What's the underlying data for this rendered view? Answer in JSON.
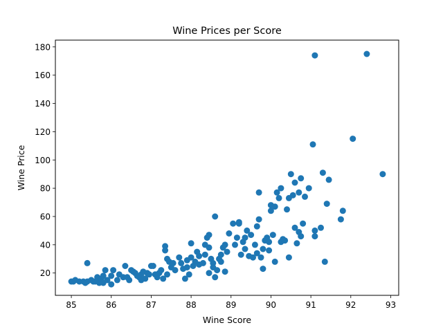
{
  "chart_data": {
    "type": "scatter",
    "title": "Wine Prices per Score",
    "xlabel": "Wine Score",
    "ylabel": "Wine Price",
    "xlim": [
      84.6,
      93.2
    ],
    "ylim": [
      4.2,
      184.8
    ],
    "xticks": [
      "85",
      "86",
      "87",
      "88",
      "89",
      "90",
      "91",
      "92",
      "93"
    ],
    "yticks": [
      "20",
      "40",
      "60",
      "80",
      "100",
      "120",
      "140",
      "160",
      "180"
    ],
    "grid": false,
    "marker_color": "#1f77b4",
    "points": [
      [
        85.0,
        14
      ],
      [
        85.05,
        14
      ],
      [
        85.1,
        15
      ],
      [
        85.2,
        14
      ],
      [
        85.3,
        14
      ],
      [
        85.35,
        13
      ],
      [
        85.4,
        14
      ],
      [
        85.4,
        27
      ],
      [
        85.5,
        15
      ],
      [
        85.55,
        14
      ],
      [
        85.6,
        14
      ],
      [
        85.65,
        17
      ],
      [
        85.7,
        13
      ],
      [
        85.75,
        16
      ],
      [
        85.8,
        13
      ],
      [
        85.8,
        18
      ],
      [
        85.85,
        22
      ],
      [
        85.9,
        15
      ],
      [
        86.0,
        12
      ],
      [
        86.0,
        18
      ],
      [
        86.05,
        22
      ],
      [
        86.15,
        15
      ],
      [
        86.2,
        19
      ],
      [
        86.3,
        17
      ],
      [
        86.35,
        25
      ],
      [
        86.4,
        17
      ],
      [
        86.45,
        15
      ],
      [
        86.5,
        22
      ],
      [
        86.55,
        21
      ],
      [
        86.6,
        20
      ],
      [
        86.65,
        18
      ],
      [
        86.7,
        17
      ],
      [
        86.75,
        15
      ],
      [
        86.75,
        19
      ],
      [
        86.8,
        21
      ],
      [
        86.85,
        16
      ],
      [
        86.9,
        20
      ],
      [
        86.95,
        19
      ],
      [
        87.0,
        25
      ],
      [
        87.05,
        25
      ],
      [
        87.1,
        19
      ],
      [
        87.15,
        17
      ],
      [
        87.2,
        20
      ],
      [
        87.25,
        22
      ],
      [
        87.3,
        16
      ],
      [
        87.35,
        39
      ],
      [
        87.35,
        36
      ],
      [
        87.4,
        30
      ],
      [
        87.4,
        19
      ],
      [
        87.45,
        28
      ],
      [
        87.5,
        24
      ],
      [
        87.55,
        27
      ],
      [
        87.6,
        22
      ],
      [
        87.7,
        31
      ],
      [
        87.75,
        27
      ],
      [
        87.8,
        23
      ],
      [
        87.85,
        16
      ],
      [
        87.9,
        29
      ],
      [
        87.9,
        24
      ],
      [
        87.95,
        19
      ],
      [
        88.0,
        41
      ],
      [
        88.0,
        31
      ],
      [
        88.05,
        25
      ],
      [
        88.1,
        28
      ],
      [
        88.15,
        35
      ],
      [
        88.2,
        32
      ],
      [
        88.2,
        26
      ],
      [
        88.3,
        27
      ],
      [
        88.35,
        33
      ],
      [
        88.35,
        40
      ],
      [
        88.4,
        45
      ],
      [
        88.45,
        47
      ],
      [
        88.45,
        38
      ],
      [
        88.45,
        20
      ],
      [
        88.5,
        30
      ],
      [
        88.55,
        24
      ],
      [
        88.55,
        27
      ],
      [
        88.6,
        60
      ],
      [
        88.6,
        17
      ],
      [
        88.65,
        22
      ],
      [
        88.7,
        30
      ],
      [
        88.75,
        28
      ],
      [
        88.75,
        33
      ],
      [
        88.8,
        38
      ],
      [
        88.85,
        21
      ],
      [
        88.85,
        40
      ],
      [
        88.9,
        35
      ],
      [
        88.95,
        48
      ],
      [
        89.05,
        55
      ],
      [
        89.1,
        40
      ],
      [
        89.15,
        45
      ],
      [
        89.2,
        55
      ],
      [
        89.2,
        56
      ],
      [
        89.25,
        33
      ],
      [
        89.3,
        42
      ],
      [
        89.35,
        37
      ],
      [
        89.35,
        45
      ],
      [
        89.4,
        50
      ],
      [
        89.45,
        32
      ],
      [
        89.5,
        47
      ],
      [
        89.55,
        31
      ],
      [
        89.6,
        40
      ],
      [
        89.65,
        34
      ],
      [
        89.65,
        53
      ],
      [
        89.7,
        58
      ],
      [
        89.7,
        77
      ],
      [
        89.75,
        31
      ],
      [
        89.8,
        37
      ],
      [
        89.8,
        23
      ],
      [
        89.85,
        43
      ],
      [
        89.9,
        45
      ],
      [
        89.95,
        42
      ],
      [
        89.95,
        36
      ],
      [
        90.0,
        64
      ],
      [
        90.0,
        68
      ],
      [
        90.05,
        47
      ],
      [
        90.1,
        28
      ],
      [
        90.1,
        67
      ],
      [
        90.15,
        77
      ],
      [
        90.2,
        73
      ],
      [
        90.25,
        80
      ],
      [
        90.25,
        42
      ],
      [
        90.3,
        44
      ],
      [
        90.35,
        43
      ],
      [
        90.4,
        65
      ],
      [
        90.45,
        73
      ],
      [
        90.45,
        31
      ],
      [
        90.5,
        90
      ],
      [
        90.55,
        75
      ],
      [
        90.6,
        84
      ],
      [
        90.6,
        52
      ],
      [
        90.65,
        41
      ],
      [
        90.7,
        49
      ],
      [
        90.7,
        77
      ],
      [
        90.75,
        46
      ],
      [
        90.75,
        87
      ],
      [
        90.8,
        55
      ],
      [
        90.85,
        74
      ],
      [
        90.95,
        80
      ],
      [
        91.05,
        111
      ],
      [
        91.1,
        50
      ],
      [
        91.1,
        46
      ],
      [
        91.1,
        174
      ],
      [
        91.25,
        52
      ],
      [
        91.3,
        91
      ],
      [
        91.35,
        28
      ],
      [
        91.4,
        69
      ],
      [
        91.45,
        86
      ],
      [
        91.75,
        58
      ],
      [
        91.8,
        64
      ],
      [
        92.05,
        115
      ],
      [
        92.4,
        175
      ],
      [
        92.8,
        90
      ]
    ]
  }
}
